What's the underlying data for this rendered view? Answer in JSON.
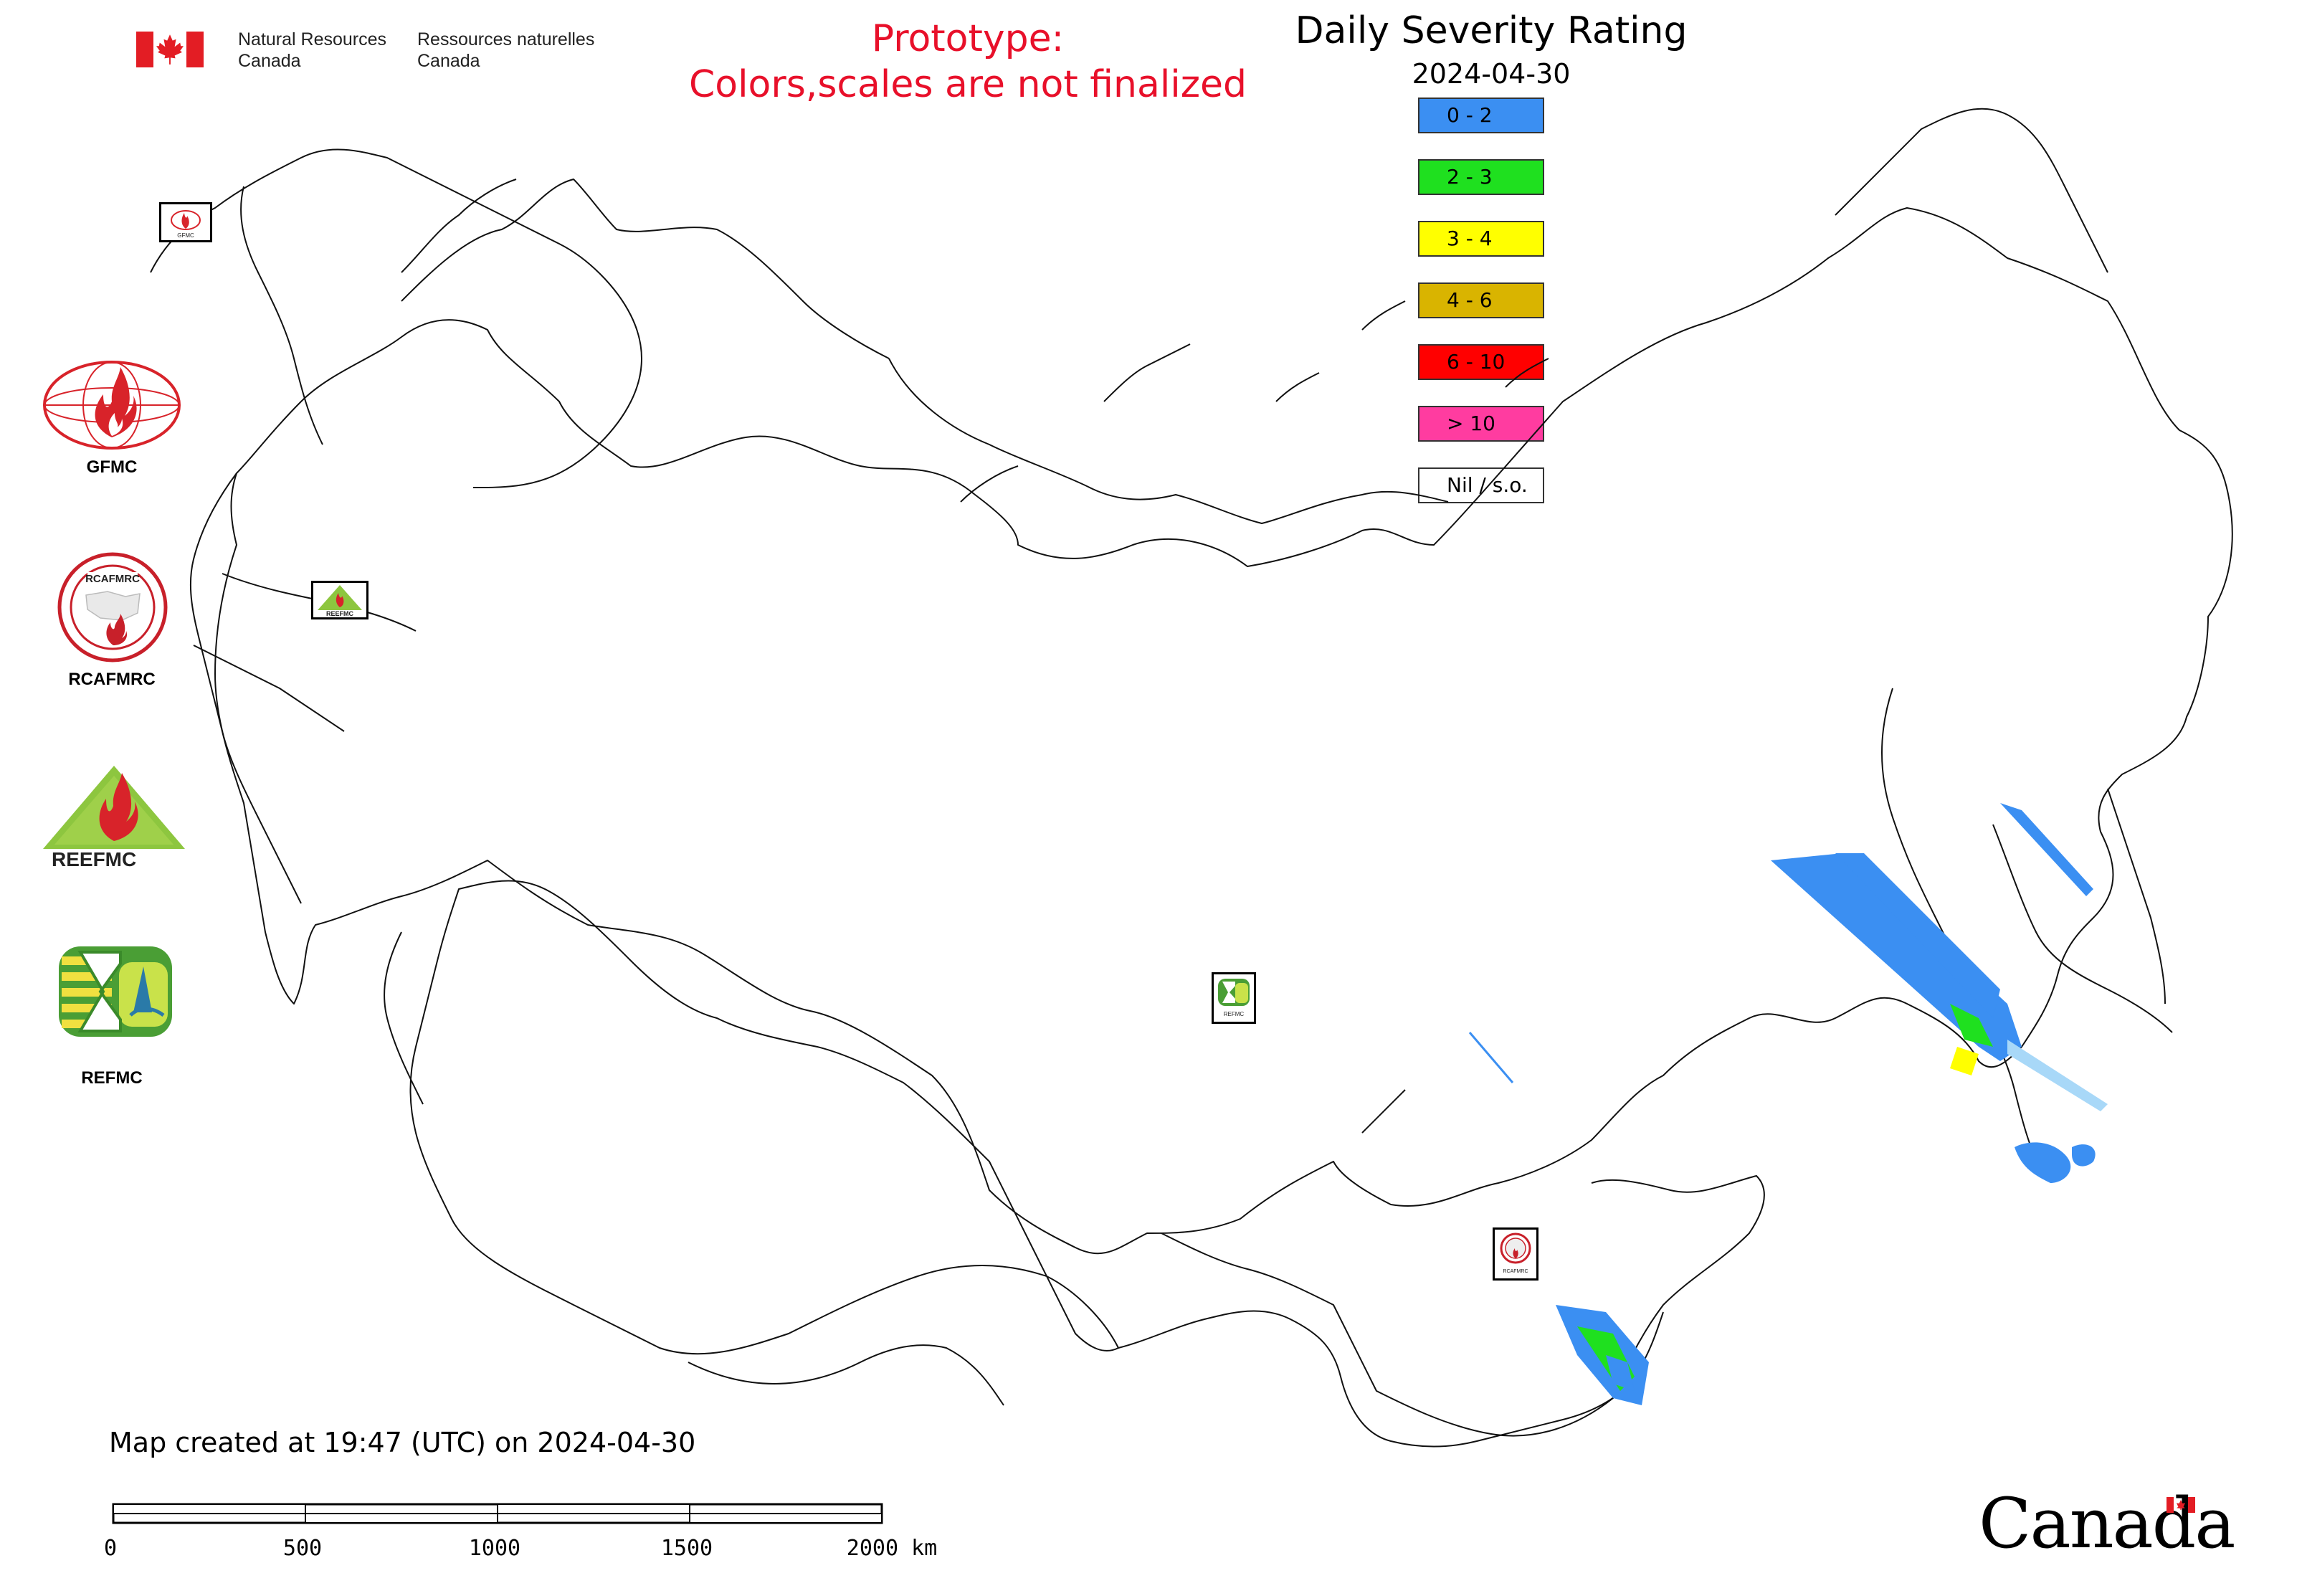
{
  "header": {
    "dept_en_line1": "Natural Resources",
    "dept_en_line2": "Canada",
    "dept_fr_line1": "Ressources naturelles",
    "dept_fr_line2": "Canada"
  },
  "prototype": {
    "line1": "Prototype:",
    "line2": "Colors,scales are not finalized",
    "color": "#e8102a"
  },
  "legend": {
    "title": "Daily Severity Rating",
    "date": "2024-04-30",
    "items": [
      {
        "label": "0 - 2",
        "color": "#3b8ff2"
      },
      {
        "label": "2 - 3",
        "color": "#1fe01f"
      },
      {
        "label": "3 - 4",
        "color": "#ffff00"
      },
      {
        "label": "4 - 6",
        "color": "#d9b400"
      },
      {
        "label": "6 - 10",
        "color": "#ff0000"
      },
      {
        "label": "> 10",
        "color": "#ff3ca0"
      },
      {
        "label": "Nil / s.o.",
        "color": "#ffffff"
      }
    ]
  },
  "side_logos": [
    {
      "label": "GFMC",
      "icon": "gfmc-logo-icon"
    },
    {
      "label": "RCAFMRC",
      "icon": "rcafmrc-logo-icon"
    },
    {
      "label": "",
      "icon": "reefmc-logo-icon",
      "text": "REEFMC"
    },
    {
      "label": "REFMC",
      "icon": "refmc-logo-icon"
    }
  ],
  "map_markers": [
    {
      "label": "GFMC"
    },
    {
      "label": "REEFMC"
    },
    {
      "label": "REFMC"
    },
    {
      "label": "RCAFMRC"
    }
  ],
  "footer": {
    "created": "Map created at 19:47 (UTC) on 2024-04-30",
    "scale_ticks": [
      "0",
      "500",
      "1000",
      "1500",
      "2000 km"
    ],
    "wordmark": "Canada"
  }
}
